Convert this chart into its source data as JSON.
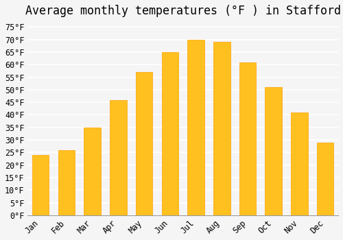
{
  "title": "Average monthly temperatures (°F ) in Stafford",
  "months": [
    "Jan",
    "Feb",
    "Mar",
    "Apr",
    "May",
    "Jun",
    "Jul",
    "Aug",
    "Sep",
    "Oct",
    "Nov",
    "Dec"
  ],
  "values": [
    24,
    26,
    35,
    46,
    57,
    65,
    70,
    69,
    61,
    51,
    41,
    29
  ],
  "bar_color": "#FFC020",
  "bar_edge_color": "#FFA000",
  "background_color": "#F5F5F5",
  "grid_color": "#FFFFFF",
  "ylim": [
    0,
    77
  ],
  "yticks": [
    0,
    5,
    10,
    15,
    20,
    25,
    30,
    35,
    40,
    45,
    50,
    55,
    60,
    65,
    70,
    75
  ],
  "title_fontsize": 12,
  "tick_fontsize": 8.5,
  "font_family": "monospace"
}
